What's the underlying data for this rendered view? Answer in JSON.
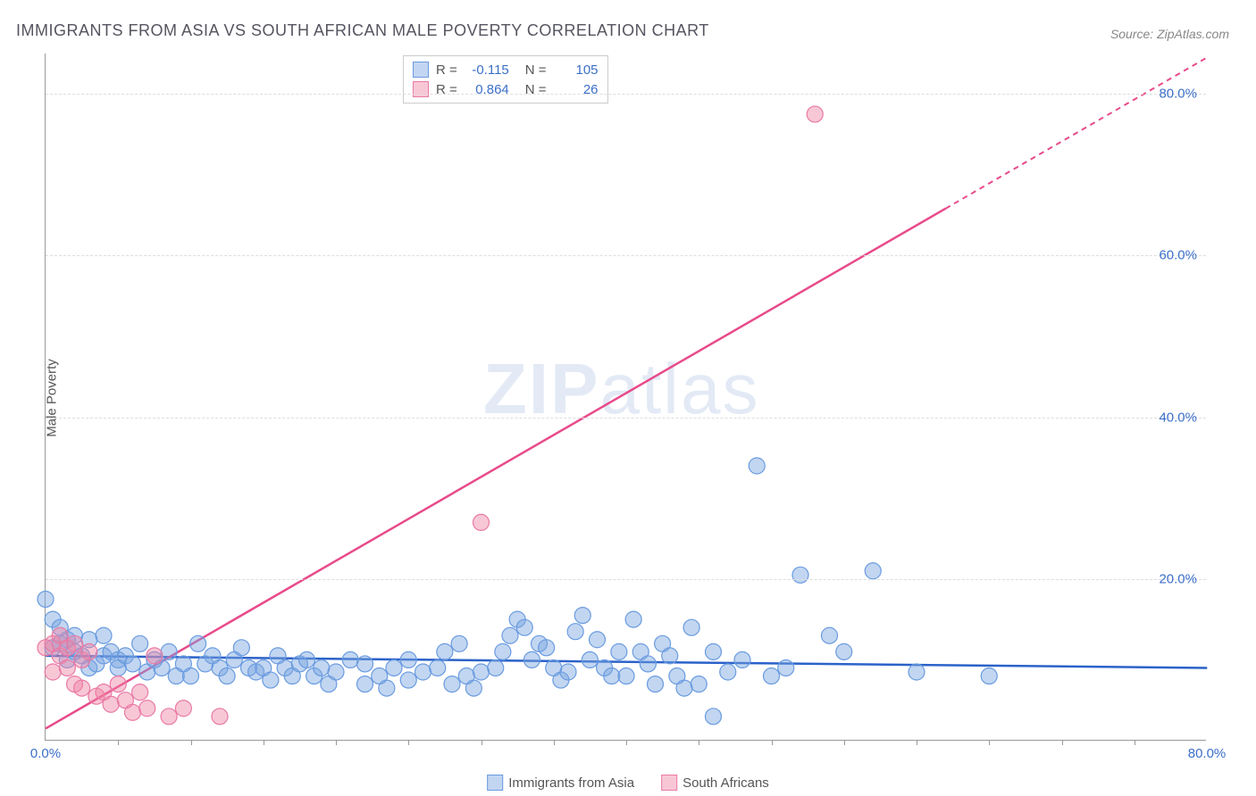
{
  "title": "IMMIGRANTS FROM ASIA VS SOUTH AFRICAN MALE POVERTY CORRELATION CHART",
  "source_label": "Source: ZipAtlas.com",
  "y_axis_label": "Male Poverty",
  "watermark_zip": "ZIP",
  "watermark_atlas": "atlas",
  "chart": {
    "type": "scatter",
    "xlim": [
      0,
      80
    ],
    "ylim": [
      0,
      85
    ],
    "x_tick_labels": [
      {
        "pos": 0,
        "label": "0.0%"
      },
      {
        "pos": 80,
        "label": "80.0%"
      }
    ],
    "x_minor_ticks": [
      5,
      10,
      15,
      20,
      25,
      30,
      35,
      40,
      45,
      50,
      55,
      60,
      65,
      70,
      75
    ],
    "y_tick_labels": [
      {
        "pos": 20,
        "label": "20.0%"
      },
      {
        "pos": 40,
        "label": "40.0%"
      },
      {
        "pos": 60,
        "label": "60.0%"
      },
      {
        "pos": 80,
        "label": "80.0%"
      }
    ],
    "background_color": "#ffffff",
    "grid_color": "#dddddd",
    "axis_color": "#999999",
    "series": [
      {
        "name": "Immigrants from Asia",
        "color_fill": "rgba(120,165,225,0.45)",
        "color_stroke": "#6a9be0",
        "trend_color": "#2b62c9",
        "trend_y1": 10.5,
        "trend_y2": 9.0,
        "trend_dash_from": 80,
        "R": "-0.115",
        "N": "105",
        "marker_r": 9,
        "points": [
          [
            0,
            17.5
          ],
          [
            0.5,
            15
          ],
          [
            0.5,
            11.5
          ],
          [
            1,
            14
          ],
          [
            1,
            12
          ],
          [
            1.5,
            10
          ],
          [
            1.5,
            12.5
          ],
          [
            2,
            13
          ],
          [
            2,
            11
          ],
          [
            2.5,
            10.5
          ],
          [
            3,
            12.5
          ],
          [
            3,
            9
          ],
          [
            3.5,
            9.5
          ],
          [
            4,
            10.5
          ],
          [
            4,
            13
          ],
          [
            4.5,
            11
          ],
          [
            5,
            10
          ],
          [
            5,
            9
          ],
          [
            5.5,
            10.5
          ],
          [
            6,
            9.5
          ],
          [
            6.5,
            12
          ],
          [
            7,
            8.5
          ],
          [
            7.5,
            10
          ],
          [
            8,
            9
          ],
          [
            8.5,
            11
          ],
          [
            9,
            8
          ],
          [
            9.5,
            9.5
          ],
          [
            10,
            8
          ],
          [
            10.5,
            12
          ],
          [
            11,
            9.5
          ],
          [
            11.5,
            10.5
          ],
          [
            12,
            9
          ],
          [
            12.5,
            8
          ],
          [
            13,
            10
          ],
          [
            13.5,
            11.5
          ],
          [
            14,
            9
          ],
          [
            14.5,
            8.5
          ],
          [
            15,
            9
          ],
          [
            15.5,
            7.5
          ],
          [
            16,
            10.5
          ],
          [
            16.5,
            9
          ],
          [
            17,
            8
          ],
          [
            17.5,
            9.5
          ],
          [
            18,
            10
          ],
          [
            18.5,
            8
          ],
          [
            19,
            9
          ],
          [
            19.5,
            7
          ],
          [
            20,
            8.5
          ],
          [
            21,
            10
          ],
          [
            22,
            9.5
          ],
          [
            22,
            7
          ],
          [
            23,
            8
          ],
          [
            23.5,
            6.5
          ],
          [
            24,
            9
          ],
          [
            25,
            10
          ],
          [
            25,
            7.5
          ],
          [
            26,
            8.5
          ],
          [
            27,
            9
          ],
          [
            27.5,
            11
          ],
          [
            28,
            7
          ],
          [
            28.5,
            12
          ],
          [
            29,
            8
          ],
          [
            29.5,
            6.5
          ],
          [
            30,
            8.5
          ],
          [
            31,
            9
          ],
          [
            31.5,
            11
          ],
          [
            32,
            13
          ],
          [
            32.5,
            15
          ],
          [
            33,
            14
          ],
          [
            33.5,
            10
          ],
          [
            34,
            12
          ],
          [
            34.5,
            11.5
          ],
          [
            35,
            9
          ],
          [
            35.5,
            7.5
          ],
          [
            36,
            8.5
          ],
          [
            36.5,
            13.5
          ],
          [
            37,
            15.5
          ],
          [
            37.5,
            10
          ],
          [
            38,
            12.5
          ],
          [
            38.5,
            9
          ],
          [
            39,
            8
          ],
          [
            39.5,
            11
          ],
          [
            40,
            8
          ],
          [
            40.5,
            15
          ],
          [
            41,
            11
          ],
          [
            41.5,
            9.5
          ],
          [
            42,
            7
          ],
          [
            42.5,
            12
          ],
          [
            43,
            10.5
          ],
          [
            43.5,
            8
          ],
          [
            44,
            6.5
          ],
          [
            44.5,
            14
          ],
          [
            45,
            7
          ],
          [
            46,
            11
          ],
          [
            46,
            3
          ],
          [
            47,
            8.5
          ],
          [
            48,
            10
          ],
          [
            49,
            34
          ],
          [
            50,
            8
          ],
          [
            51,
            9
          ],
          [
            52,
            20.5
          ],
          [
            54,
            13
          ],
          [
            55,
            11
          ],
          [
            57,
            21
          ],
          [
            60,
            8.5
          ],
          [
            65,
            8
          ]
        ]
      },
      {
        "name": "South Africans",
        "color_fill": "rgba(240,130,165,0.45)",
        "color_stroke": "#e97aa5",
        "trend_color": "#e84a8a",
        "trend_y1": 1.5,
        "trend_y2": 84.5,
        "trend_dash_from": 62,
        "R": "0.864",
        "N": "26",
        "marker_r": 9,
        "points": [
          [
            0,
            11.5
          ],
          [
            0.5,
            12
          ],
          [
            0.5,
            8.5
          ],
          [
            1,
            10.5
          ],
          [
            1,
            13
          ],
          [
            1.5,
            11.5
          ],
          [
            1.5,
            9
          ],
          [
            2,
            7
          ],
          [
            2,
            12
          ],
          [
            2.5,
            10
          ],
          [
            2.5,
            6.5
          ],
          [
            3,
            11
          ],
          [
            3.5,
            5.5
          ],
          [
            4,
            6
          ],
          [
            4.5,
            4.5
          ],
          [
            5,
            7
          ],
          [
            5.5,
            5
          ],
          [
            6,
            3.5
          ],
          [
            6.5,
            6
          ],
          [
            7,
            4
          ],
          [
            7.5,
            10.5
          ],
          [
            8.5,
            3
          ],
          [
            9.5,
            4
          ],
          [
            12,
            3
          ],
          [
            30,
            27
          ],
          [
            53,
            77.5
          ]
        ]
      }
    ]
  },
  "legend_top": {
    "R_label": "R =",
    "N_label": "N ="
  },
  "legend_bottom": [
    {
      "swatch_fill": "rgba(120,165,225,0.45)",
      "swatch_stroke": "#6a9be0",
      "label": "Immigrants from Asia"
    },
    {
      "swatch_fill": "rgba(240,130,165,0.45)",
      "swatch_stroke": "#e97aa5",
      "label": "South Africans"
    }
  ],
  "colors": {
    "title": "#555560",
    "source": "#888888",
    "tick_label": "#3b6fc9",
    "y_label": "#555555"
  }
}
